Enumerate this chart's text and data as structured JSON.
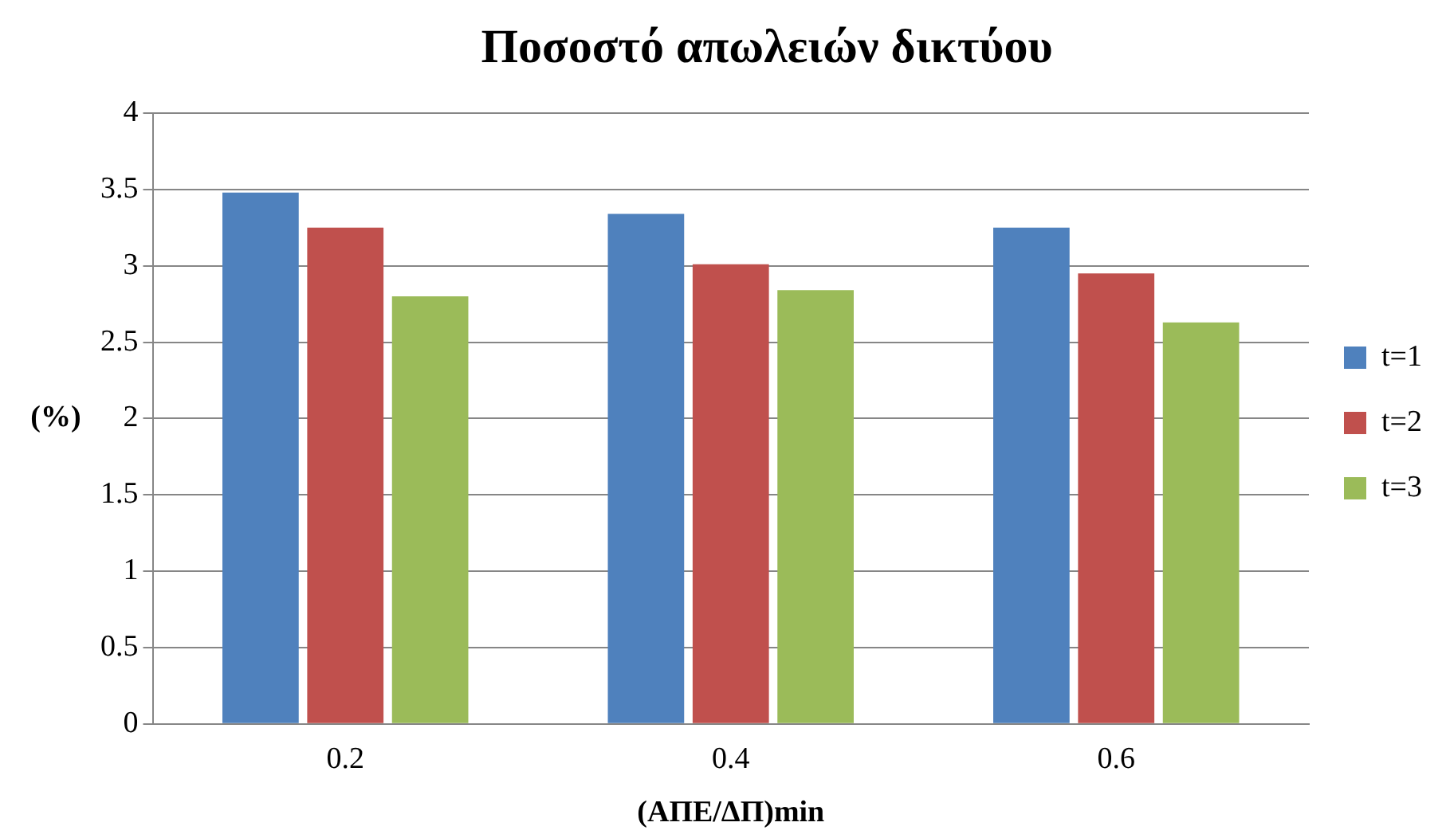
{
  "chart_data": {
    "type": "bar",
    "title": "Ποσοστό απωλειών δικτύου",
    "xlabel": "(ΑΠΕ/ΔΠ)min",
    "ylabel": "(%)",
    "categories": [
      "0.2",
      "0.4",
      "0.6"
    ],
    "series": [
      {
        "name": "t=1",
        "color": "#4f81bd",
        "values": [
          3.48,
          3.34,
          3.25
        ]
      },
      {
        "name": "t=2",
        "color": "#c0504d",
        "values": [
          3.25,
          3.01,
          2.95
        ]
      },
      {
        "name": "t=3",
        "color": "#9bbb59",
        "values": [
          2.8,
          2.84,
          2.63
        ]
      }
    ],
    "ylim": [
      0,
      4
    ],
    "yticks": [
      0,
      0.5,
      1,
      1.5,
      2,
      2.5,
      3,
      3.5,
      4
    ],
    "grid": "y",
    "legend": "right"
  }
}
